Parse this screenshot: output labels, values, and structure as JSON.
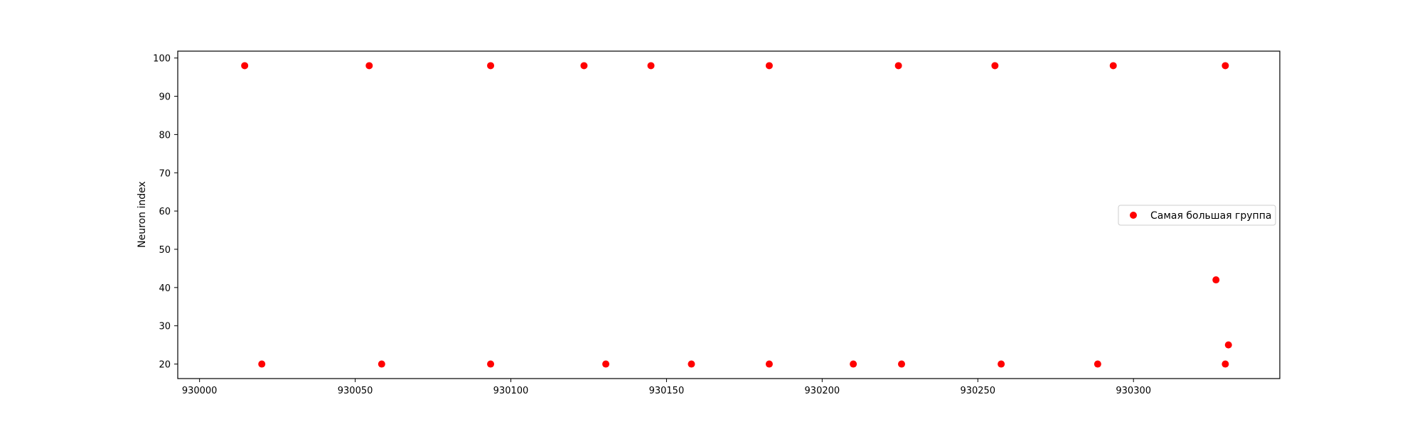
{
  "chart_data": {
    "type": "scatter",
    "title": "",
    "xlabel": "",
    "ylabel": "Neuron index",
    "xlim": [
      929993,
      930347
    ],
    "ylim": [
      16.2,
      101.8
    ],
    "xticks": [
      930000,
      930050,
      930100,
      930150,
      930200,
      930250,
      930300
    ],
    "xtick_labels": [
      "930000",
      "930050",
      "930100",
      "930150",
      "930200",
      "930250",
      "930300"
    ],
    "yticks": [
      20,
      30,
      40,
      50,
      60,
      70,
      80,
      90,
      100
    ],
    "ytick_labels": [
      "20",
      "30",
      "40",
      "50",
      "60",
      "70",
      "80",
      "90",
      "100"
    ],
    "grid": false,
    "legend_position": "center-right",
    "series": [
      {
        "name": "Самая большая группа",
        "color": "#ff0000",
        "marker": "circle",
        "points": [
          {
            "x": 930014.5,
            "y": 98
          },
          {
            "x": 930054.5,
            "y": 98
          },
          {
            "x": 930093.5,
            "y": 98
          },
          {
            "x": 930123.5,
            "y": 98
          },
          {
            "x": 930145.0,
            "y": 98
          },
          {
            "x": 930183.0,
            "y": 98
          },
          {
            "x": 930224.5,
            "y": 98
          },
          {
            "x": 930255.5,
            "y": 98
          },
          {
            "x": 930293.5,
            "y": 98
          },
          {
            "x": 930329.5,
            "y": 98
          },
          {
            "x": 930020.0,
            "y": 20
          },
          {
            "x": 930058.5,
            "y": 20
          },
          {
            "x": 930093.5,
            "y": 20
          },
          {
            "x": 930130.5,
            "y": 20
          },
          {
            "x": 930158.0,
            "y": 20
          },
          {
            "x": 930183.0,
            "y": 20
          },
          {
            "x": 930210.0,
            "y": 20
          },
          {
            "x": 930225.5,
            "y": 20
          },
          {
            "x": 930257.5,
            "y": 20
          },
          {
            "x": 930288.5,
            "y": 20
          },
          {
            "x": 930329.5,
            "y": 20
          },
          {
            "x": 930326.5,
            "y": 42
          },
          {
            "x": 930330.5,
            "y": 25
          }
        ]
      }
    ]
  }
}
